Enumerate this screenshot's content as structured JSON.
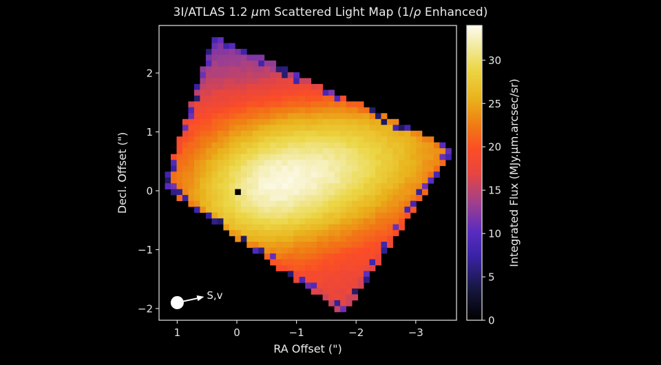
{
  "chart_data": {
    "type": "heatmap",
    "title": "3I/ATLAS 1.2 μm Scattered Light Map (1/ρ Enhanced)",
    "title_parts": {
      "pre": "3I/ATLAS 1.2 ",
      "mu": "μ",
      "mid": "m Scattered Light Map (1/",
      "rho": "ρ",
      "post": " Enhanced)"
    },
    "xlabel": "RA Offset (\")",
    "ylabel": "Decl. Offset (\")",
    "x_ticks": [
      1,
      0,
      -1,
      -2,
      -3
    ],
    "x_tick_labels": [
      "1",
      "0",
      "−1",
      "−2",
      "−3"
    ],
    "y_ticks": [
      2,
      1,
      0,
      -1,
      -2
    ],
    "y_tick_labels": [
      "2",
      "1",
      "0",
      "−1",
      "−2"
    ],
    "xlim": [
      1.3,
      -3.7
    ],
    "ylim": [
      -2.2,
      2.8
    ],
    "grid": false,
    "colorbar": {
      "label": "Integrated Flux (MJy.μm.arcsec/sr)",
      "ticks": [
        0,
        5,
        10,
        15,
        20,
        25,
        30
      ],
      "range": [
        0,
        34
      ],
      "colormap": "CMRmap-like (black → blue/purple → red → orange → yellow → white)",
      "stops": [
        {
          "v": 0.0,
          "c": "#000000"
        },
        {
          "v": 0.1,
          "c": "#15163a"
        },
        {
          "v": 0.22,
          "c": "#3a23a8"
        },
        {
          "v": 0.3,
          "c": "#5a2bc0"
        },
        {
          "v": 0.4,
          "c": "#a0408c"
        },
        {
          "v": 0.5,
          "c": "#e8463e"
        },
        {
          "v": 0.58,
          "c": "#fb4d26"
        },
        {
          "v": 0.66,
          "c": "#f07a14"
        },
        {
          "v": 0.75,
          "c": "#e9b21c"
        },
        {
          "v": 0.85,
          "c": "#ecd645"
        },
        {
          "v": 0.93,
          "c": "#f2eaa0"
        },
        {
          "v": 1.0,
          "c": "#fdfbf0"
        }
      ]
    },
    "map_model": {
      "pixel_size_arcsec": 0.098,
      "footprint_vertices_arcsec": [
        [
          0.4,
          2.65
        ],
        [
          -3.65,
          0.72
        ],
        [
          -1.8,
          -2.1
        ],
        [
          1.25,
          0.08
        ]
      ],
      "peak_position_arcsec": [
        -0.75,
        0.15
      ],
      "peak_value": 33.5,
      "elongation_angle_deg": 14,
      "sigma_major_arcsec": 2.6,
      "sigma_minor_arcsec": 1.25,
      "floor_value": 16.5,
      "nucleus_mask_arcsec": [
        0.0,
        0.0
      ],
      "edge_notes": "Edge pixels along the left and lower-right borders drop to ~5–12 (blue/purple); top region ~13–16 (purple/magenta)."
    },
    "annotations": [
      {
        "text": "S,v",
        "type": "arrow",
        "from_arcsec": [
          1.0,
          -1.9
        ],
        "to_arcsec": [
          0.55,
          -1.8
        ],
        "marker": "filled white circle at origin"
      },
      {
        "text": "",
        "type": "masked-pixel",
        "at_arcsec": [
          0.0,
          0.0
        ],
        "color": "#000000"
      }
    ]
  }
}
